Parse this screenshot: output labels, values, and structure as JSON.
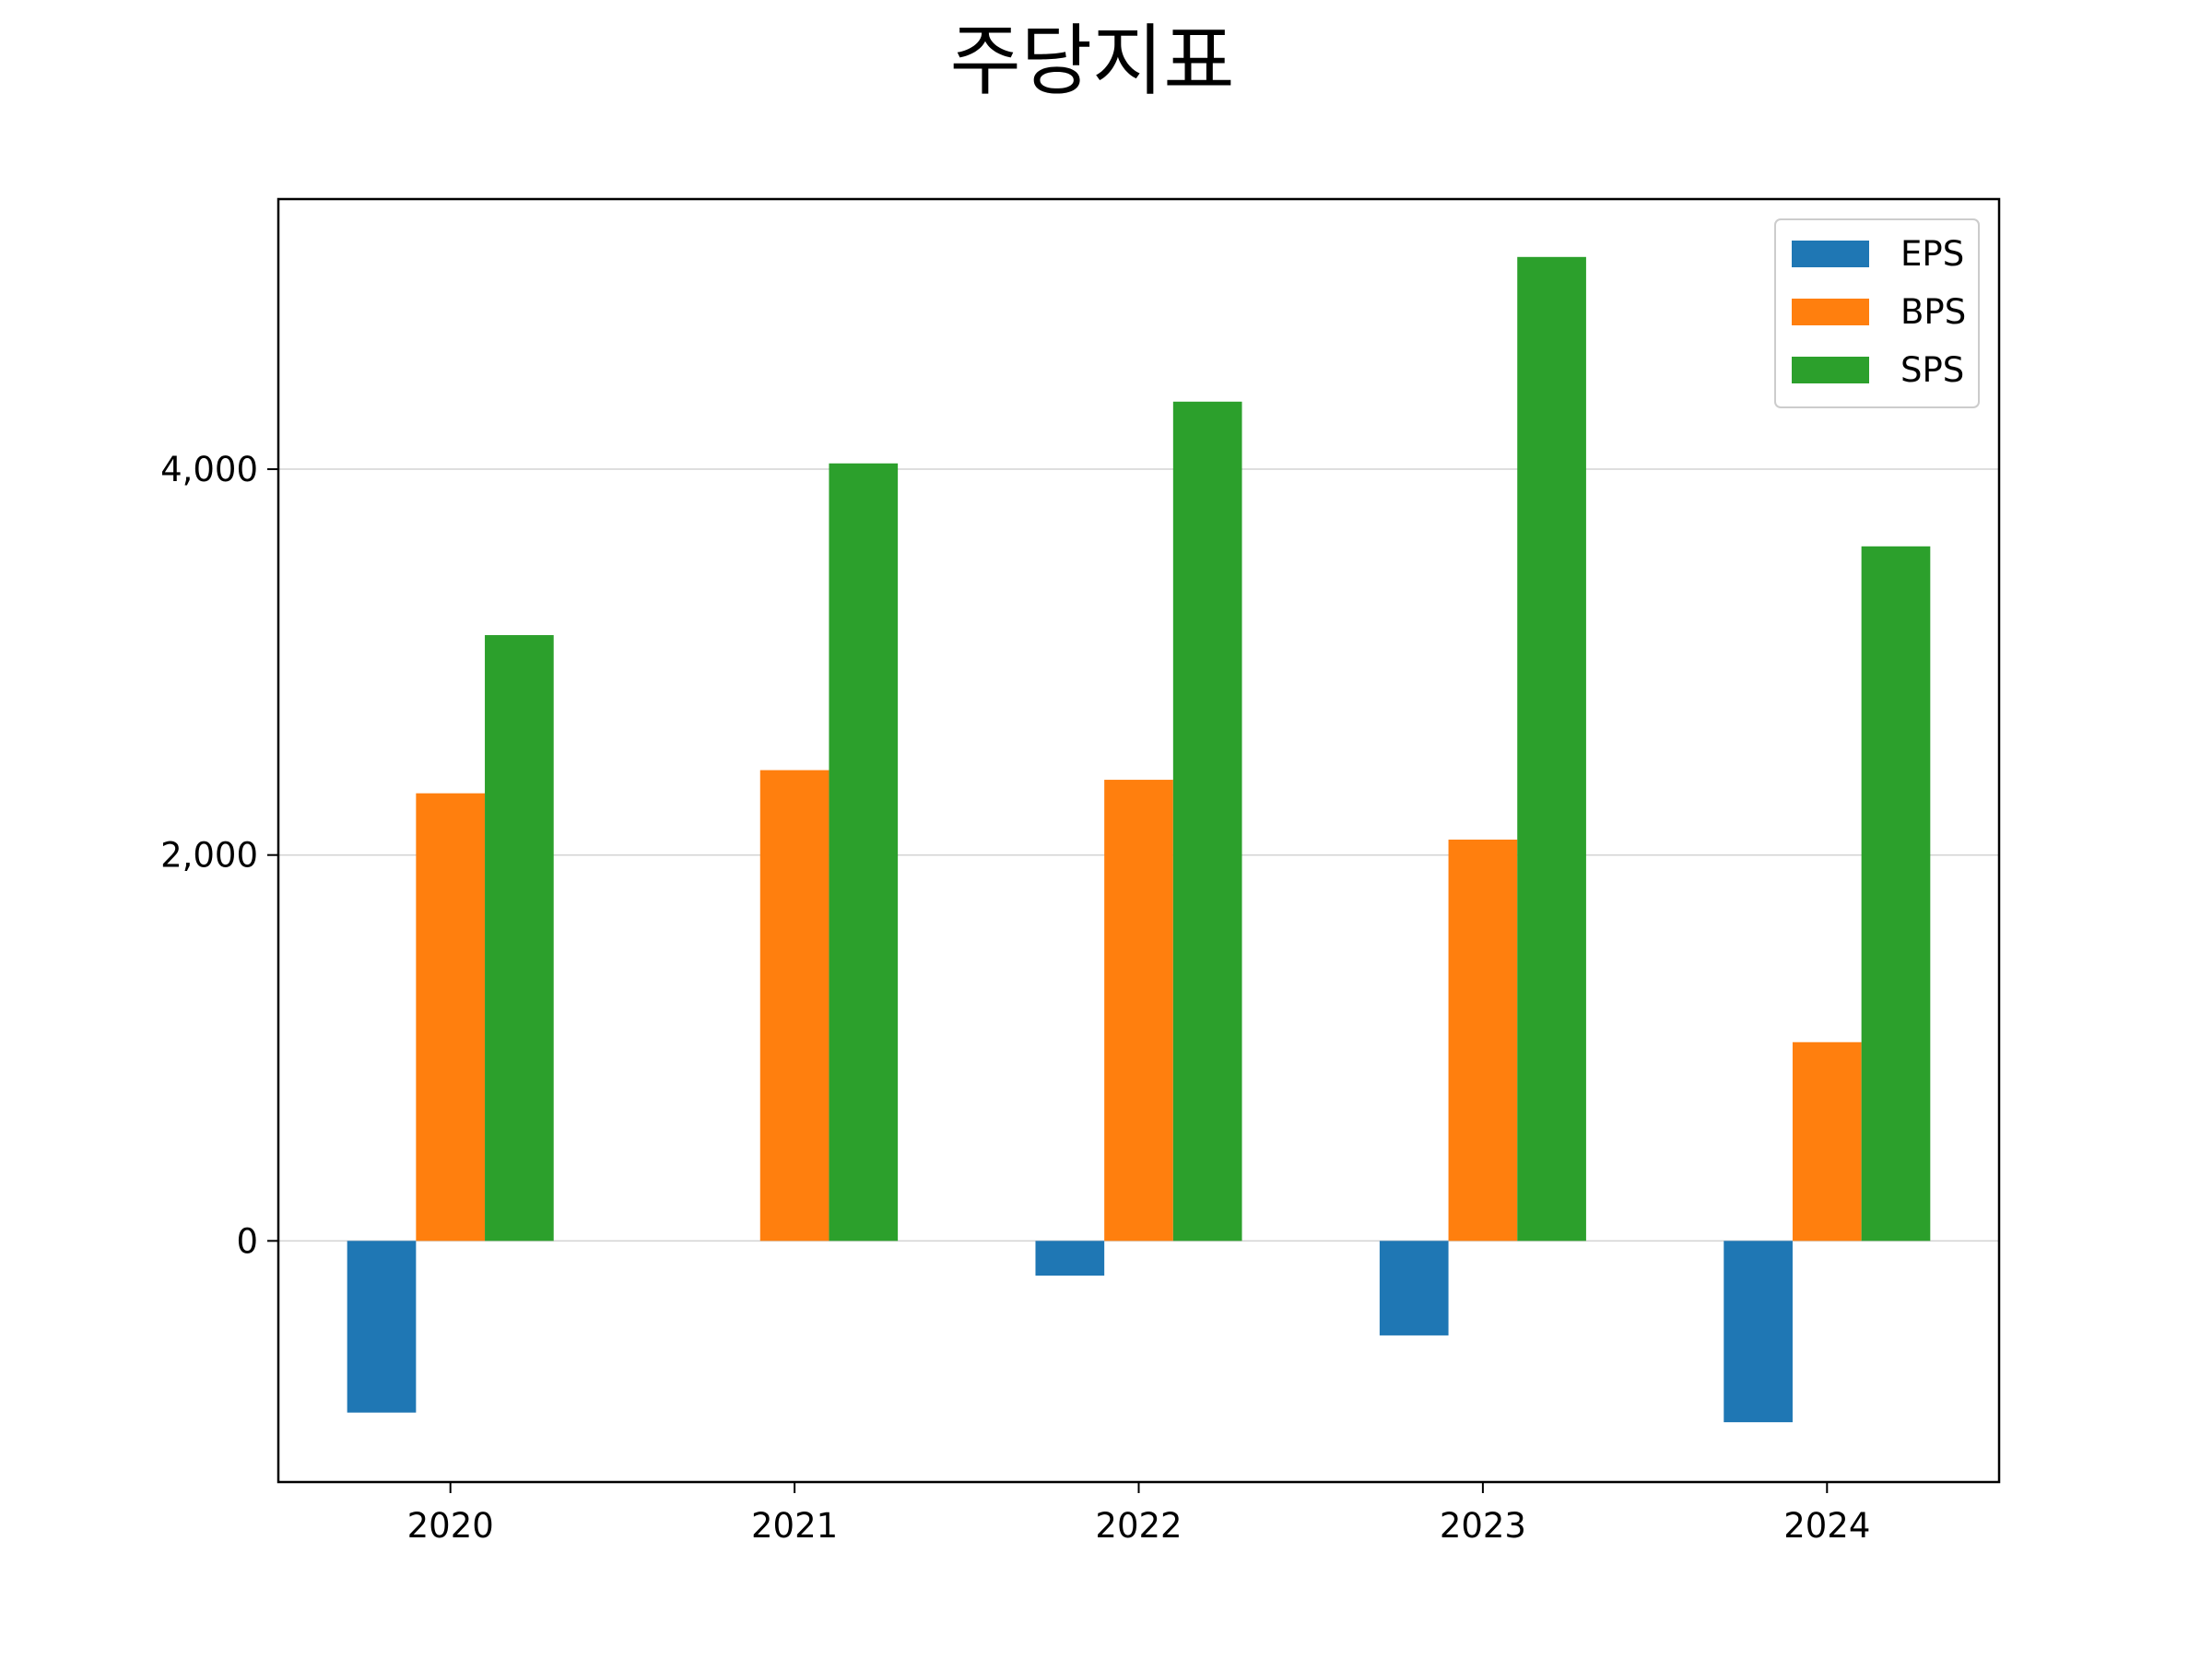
{
  "chart_data": {
    "type": "bar",
    "title": "주당지표",
    "xlabel": "",
    "ylabel": "",
    "categories": [
      "2020",
      "2021",
      "2022",
      "2023",
      "2024"
    ],
    "series": [
      {
        "name": "EPS",
        "color": "#1f77b4",
        "values": [
          -890,
          0,
          -180,
          -490,
          -940
        ]
      },
      {
        "name": "BPS",
        "color": "#ff7f0e",
        "values": [
          2320,
          2440,
          2390,
          2080,
          1030
        ]
      },
      {
        "name": "SPS",
        "color": "#2ca02c",
        "values": [
          3140,
          4030,
          4350,
          5100,
          3600
        ]
      }
    ],
    "yticks": [
      0,
      2000,
      4000
    ],
    "ytick_labels": [
      "0",
      "2,000",
      "4,000"
    ],
    "ylim": [
      -1250,
      5400
    ],
    "grid": "horizontal",
    "legend_position": "top-right"
  }
}
